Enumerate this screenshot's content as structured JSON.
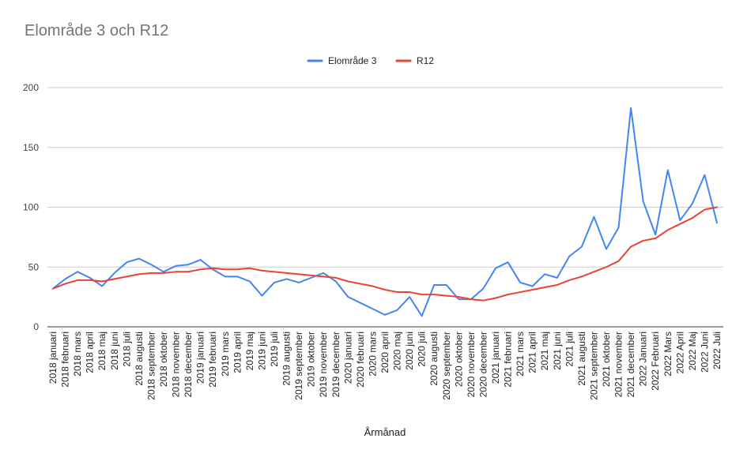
{
  "chart_data": {
    "type": "line",
    "title": "Elområde 3 och R12",
    "xlabel": "Årmånad",
    "ylabel": "",
    "ylim": [
      0,
      200
    ],
    "yticks": [
      0,
      50,
      100,
      150,
      200
    ],
    "grid": true,
    "legend_position": "top",
    "categories": [
      "2018 januari",
      "2018 februari",
      "2018 mars",
      "2018 april",
      "2018 maj",
      "2018 juni",
      "2018 juli",
      "2018 augusti",
      "2018 september",
      "2018 oktober",
      "2018 november",
      "2018 december",
      "2019 januari",
      "2019 februari",
      "2019 mars",
      "2019 april",
      "2019 maj",
      "2019 juni",
      "2019 juli",
      "2019 augusti",
      "2019 september",
      "2019 oktober",
      "2019 november",
      "2019 december",
      "2020 januari",
      "2020 februari",
      "2020 mars",
      "2020 april",
      "2020 maj",
      "2020 juni",
      "2020 juli",
      "2020 augusti",
      "2020 september",
      "2020 oktober",
      "2020 november",
      "2020 december",
      "2021 januari",
      "2021 februari",
      "2021 mars",
      "2021 april",
      "2021 maj",
      "2021 juni",
      "2021 juli",
      "2021 augusti",
      "2021 september",
      "2021 oktober",
      "2021 november",
      "2021 december",
      "2022 Januari",
      "2022 Februari",
      "2022 Mars",
      "2022 April",
      "2022 Maj",
      "2022 Juni",
      "2022 Juli"
    ],
    "series": [
      {
        "name": "Elområde 3",
        "color": "#4285f4",
        "values": [
          32,
          40,
          46,
          41,
          34,
          45,
          54,
          57,
          52,
          46,
          51,
          52,
          56,
          48,
          42,
          42,
          38,
          26,
          37,
          40,
          37,
          41,
          45,
          38,
          25,
          20,
          15,
          10,
          14,
          25,
          9,
          35,
          35,
          23,
          23,
          32,
          49,
          54,
          37,
          34,
          44,
          41,
          59,
          67,
          92,
          65,
          83,
          183,
          105,
          77,
          131,
          89,
          103,
          127,
          87
        ]
      },
      {
        "name": "R12",
        "color": "#ea4335",
        "values": [
          32,
          36,
          39,
          39,
          38,
          40,
          42,
          44,
          45,
          45,
          46,
          46,
          48,
          49,
          48,
          48,
          49,
          47,
          46,
          45,
          44,
          43,
          42,
          41,
          38,
          36,
          34,
          31,
          29,
          29,
          27,
          27,
          26,
          25,
          23,
          22,
          24,
          27,
          29,
          31,
          33,
          35,
          39,
          42,
          46,
          50,
          55,
          67,
          72,
          74,
          81,
          86,
          91,
          98,
          100
        ]
      }
    ]
  }
}
